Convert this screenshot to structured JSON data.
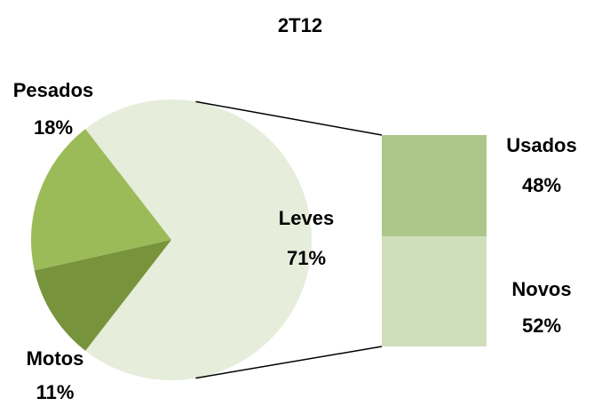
{
  "chart_data": {
    "type": "bar-of-pie",
    "title": "2T12",
    "categories": [
      "Leves",
      "Pesados",
      "Motos"
    ],
    "values": [
      71,
      18,
      11
    ],
    "value_labels": [
      "71%",
      "18%",
      "11%"
    ],
    "colors": [
      "#e6eddb",
      "#9bbb59",
      "#77933c"
    ],
    "secondary": {
      "categories": [
        "Usados",
        "Novos"
      ],
      "values": [
        48,
        52
      ],
      "value_labels": [
        "48%",
        "52%"
      ],
      "colors": [
        "#adc68a",
        "#d0dfbb"
      ]
    }
  }
}
